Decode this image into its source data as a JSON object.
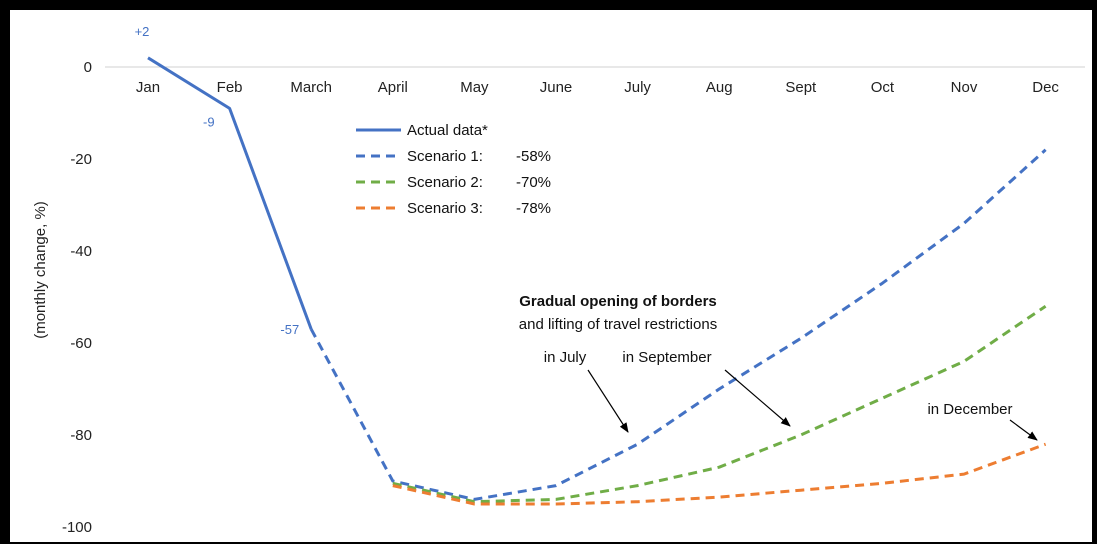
{
  "chart_data": {
    "type": "line",
    "ylabel": "(monthly change, %)",
    "ylim": [
      -100,
      5
    ],
    "yticks": [
      0,
      -20,
      -40,
      -60,
      -80,
      -100
    ],
    "categories": [
      "Jan",
      "Feb",
      "March",
      "April",
      "May",
      "June",
      "July",
      "Aug",
      "Sept",
      "Oct",
      "Nov",
      "Dec"
    ],
    "series": [
      {
        "name": "Actual data*",
        "style": "solid",
        "color": "#4472C4",
        "values": [
          2,
          -9,
          -57,
          null,
          null,
          null,
          null,
          null,
          null,
          null,
          null,
          null
        ]
      },
      {
        "name": "Scenario 1:",
        "pct": "-58%",
        "style": "dashed",
        "color": "#4472C4",
        "values": [
          null,
          null,
          -57,
          -90,
          -94,
          -91,
          -82,
          -70,
          -59,
          -47,
          -34,
          -18
        ]
      },
      {
        "name": "Scenario 2:",
        "pct": "-70%",
        "style": "dashed",
        "color": "#70AD47",
        "values": [
          null,
          null,
          null,
          -90.5,
          -94.5,
          -94,
          -91,
          -87,
          -80,
          -72,
          -64,
          -52
        ]
      },
      {
        "name": "Scenario 3:",
        "pct": "-78%",
        "style": "dashed",
        "color": "#ED7D31",
        "values": [
          null,
          null,
          null,
          -91,
          -95,
          -95,
          -94.5,
          -93.5,
          -92,
          -90.5,
          -88.5,
          -82
        ]
      }
    ],
    "data_labels": [
      {
        "category": "Jan",
        "value": 2,
        "text": "+2"
      },
      {
        "category": "Feb",
        "value": -9,
        "text": "-9"
      },
      {
        "category": "March",
        "value": -57,
        "text": "-57"
      }
    ],
    "annotations": {
      "title_bold": "Gradual opening of borders",
      "title_sub": "and lifting of travel restrictions",
      "july": "in July",
      "september": "in September",
      "december": "in December"
    },
    "legend_position": "top-center",
    "grid": false
  }
}
